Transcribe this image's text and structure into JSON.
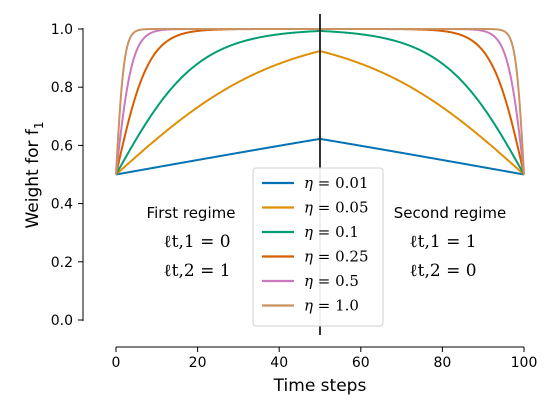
{
  "chart_data": {
    "type": "line",
    "xlabel": "Time steps",
    "ylabel": "Weight for f",
    "ylabel_sub": "1",
    "xlim": [
      0,
      100
    ],
    "ylim": [
      -0.05,
      1.0
    ],
    "xticks": [
      "0",
      "20",
      "40",
      "60",
      "80",
      "100"
    ],
    "yticks": [
      "0.0",
      "0.2",
      "0.4",
      "0.6",
      "0.8",
      "1.0"
    ],
    "regime_switch_x": 50,
    "legend_position": "center",
    "series": [
      {
        "name": "η = 0.01",
        "symbol": "η",
        "value": "= 0.01",
        "eta": 0.01,
        "color": "#0173b2"
      },
      {
        "name": "η = 0.05",
        "symbol": "η",
        "value": "= 0.05",
        "eta": 0.05,
        "color": "#de8f05"
      },
      {
        "name": "η = 0.1",
        "symbol": "η",
        "value": "= 0.1",
        "eta": 0.1,
        "color": "#029e73"
      },
      {
        "name": "η = 0.25",
        "symbol": "η",
        "value": "= 0.25",
        "eta": 0.25,
        "color": "#d55e00"
      },
      {
        "name": "η = 0.5",
        "symbol": "η",
        "value": "= 0.5",
        "eta": 0.5,
        "color": "#cc78bc"
      },
      {
        "name": "η = 1.0",
        "symbol": "η",
        "value": "= 1.0",
        "eta": 1.0,
        "color": "#ca9161"
      }
    ],
    "annotations": {
      "first": {
        "title": "First regime",
        "loss1": "ℓt,1 = 0",
        "loss2": "ℓt,2 = 1"
      },
      "second": {
        "title": "Second regime",
        "loss1": "ℓt,1 = 1",
        "loss2": "ℓt,2 = 0"
      }
    }
  }
}
